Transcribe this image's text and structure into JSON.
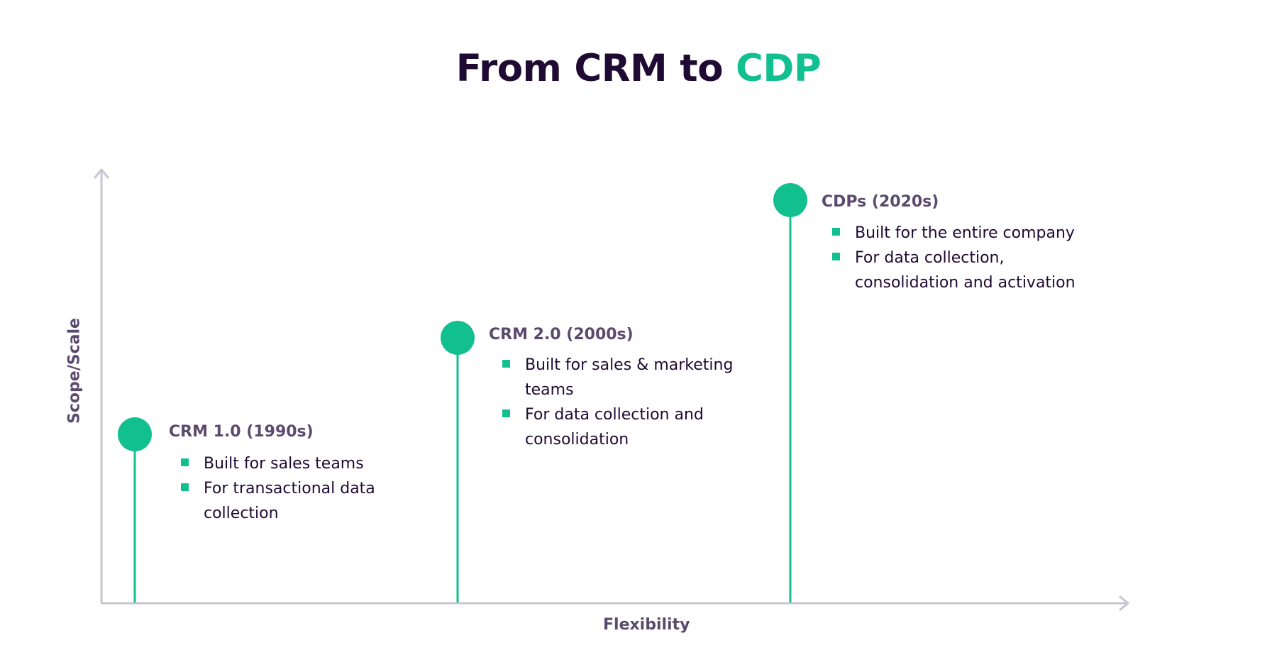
{
  "title": {
    "main": "From CRM to",
    "accent": "CDP"
  },
  "axes": {
    "x_label": "Flexibility",
    "y_label": "Scope/Scale"
  },
  "colors": {
    "accent": "#12c08f",
    "dark": "#1e0a32",
    "muted": "#5a4a6e",
    "axis": "#c9c4d2"
  },
  "stages": [
    {
      "heading": "CRM 1.0 (1990s)",
      "bullets": [
        "Built for sales teams",
        "For transactional data collection"
      ]
    },
    {
      "heading": "CRM 2.0 (2000s)",
      "bullets": [
        "Built for sales & marketing teams",
        "For data collection and consolidation"
      ]
    },
    {
      "heading": "CDPs (2020s)",
      "bullets": [
        "Built for the entire company",
        "For data collection, consolidation and activation"
      ]
    }
  ]
}
